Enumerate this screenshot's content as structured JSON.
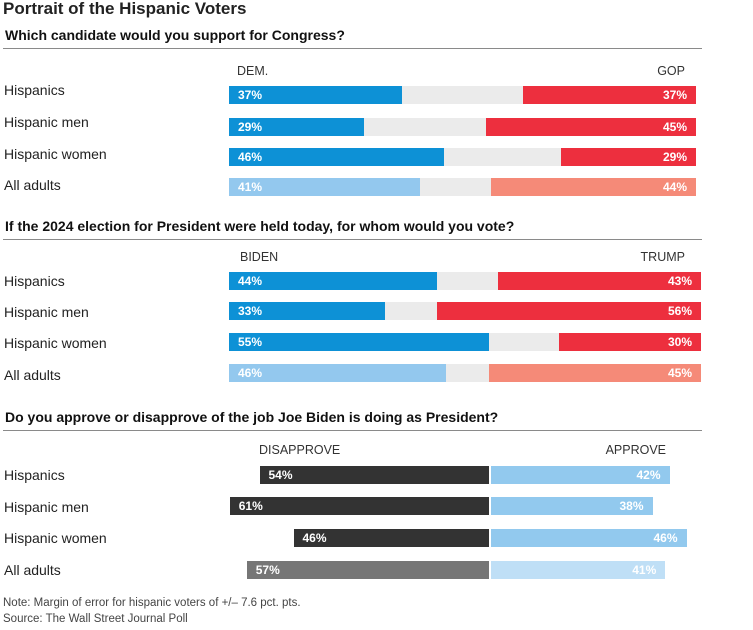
{
  "title": "Portrait of the Hispanic Voters",
  "colors": {
    "dem": "#0d91d6",
    "dem_light": "#93c8ee",
    "gop": "#ed2f3e",
    "gop_light": "#f58a78",
    "neutral": "#ebebeb",
    "disapprove": "#333333",
    "disapprove_light": "#767676",
    "approve": "#92c9ee",
    "approve_light": "#bfdff6"
  },
  "chart_data": [
    {
      "type": "bar",
      "subtype": "diverging-stacked",
      "question": "Which candidate would you support for Congress?",
      "left_label": "DEM.",
      "right_label": "GOP",
      "categories": [
        "Hispanics",
        "Hispanic men",
        "Hispanic women",
        "All adults"
      ],
      "series": [
        {
          "name": "DEM.",
          "values": [
            37,
            29,
            46,
            41
          ],
          "labels": [
            "37%",
            "29%",
            "46%",
            "41%"
          ]
        },
        {
          "name": "GOP",
          "values": [
            37,
            45,
            29,
            44
          ],
          "labels": [
            "37%",
            "45%",
            "29%",
            "44%"
          ]
        }
      ]
    },
    {
      "type": "bar",
      "subtype": "diverging-stacked",
      "question": "If the 2024 election for President were held today, for whom would you vote?",
      "left_label": "BIDEN",
      "right_label": "TRUMP",
      "categories": [
        "Hispanics",
        "Hispanic men",
        "Hispanic women",
        "All adults"
      ],
      "series": [
        {
          "name": "BIDEN",
          "values": [
            44,
            33,
            55,
            46
          ],
          "labels": [
            "44%",
            "33%",
            "55%",
            "46%"
          ]
        },
        {
          "name": "TRUMP",
          "values": [
            43,
            56,
            30,
            45
          ],
          "labels": [
            "43%",
            "56%",
            "30%",
            "45%"
          ]
        }
      ]
    },
    {
      "type": "bar",
      "subtype": "diverging",
      "question": "Do you approve or disapprove of the job Joe Biden is doing as President?",
      "left_label": "DISAPPROVE",
      "right_label": "APPROVE",
      "categories": [
        "Hispanics",
        "Hispanic men",
        "Hispanic women",
        "All adults"
      ],
      "series": [
        {
          "name": "DISAPPROVE",
          "values": [
            54,
            61,
            46,
            57
          ],
          "labels": [
            "54%",
            "61%",
            "46%",
            "57%"
          ]
        },
        {
          "name": "APPROVE",
          "values": [
            42,
            38,
            46,
            41
          ],
          "labels": [
            "42%",
            "38%",
            "46%",
            "41%"
          ]
        }
      ]
    }
  ],
  "footnotes": {
    "note": "Note: Margin of error for hispanic voters of +/– 7.6 pct. pts.",
    "source": "Source: The Wall Street Journal Poll"
  }
}
